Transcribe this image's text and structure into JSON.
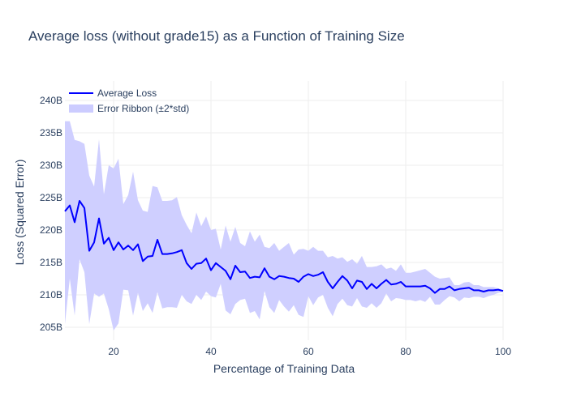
{
  "chart_data": {
    "type": "line",
    "title": "Average loss (without grade15) as a Function of Training Size",
    "xlabel": "Percentage of Training Data",
    "ylabel": "Loss (Squared Error)",
    "xlim": [
      10,
      100
    ],
    "ylim": [
      203,
      243
    ],
    "x_ticks": [
      20,
      40,
      60,
      80,
      100
    ],
    "y_ticks": [
      205,
      210,
      215,
      220,
      225,
      230,
      235,
      240
    ],
    "y_tick_labels": [
      "205B",
      "210B",
      "215B",
      "220B",
      "225B",
      "230B",
      "235B",
      "240B"
    ],
    "legend_position": "top-left",
    "grid": true,
    "series": [
      {
        "name": "Average Loss",
        "color": "#0000ff",
        "x": [
          10,
          11,
          12,
          13,
          14,
          15,
          16,
          17,
          18,
          19,
          20,
          21,
          22,
          23,
          24,
          25,
          26,
          27,
          28,
          29,
          30,
          31,
          32,
          33,
          34,
          35,
          36,
          37,
          38,
          39,
          40,
          41,
          42,
          43,
          44,
          45,
          46,
          47,
          48,
          49,
          50,
          51,
          52,
          53,
          54,
          55,
          56,
          57,
          58,
          59,
          60,
          61,
          62,
          63,
          64,
          65,
          66,
          67,
          68,
          69,
          70,
          71,
          72,
          73,
          74,
          75,
          76,
          77,
          78,
          79,
          80,
          81,
          82,
          83,
          84,
          85,
          86,
          87,
          88,
          89,
          90,
          91,
          92,
          93,
          94,
          95,
          96,
          97,
          98,
          99,
          100
        ],
        "values": [
          222.9,
          223.8,
          221.2,
          224.5,
          223.4,
          216.8,
          218.1,
          221.8,
          217.9,
          218.8,
          216.9,
          218.1,
          217.0,
          217.6,
          216.9,
          217.8,
          215.2,
          215.9,
          216.0,
          218.5,
          216.3,
          216.3,
          216.4,
          216.6,
          216.9,
          214.9,
          214.0,
          214.8,
          214.9,
          215.6,
          213.8,
          214.9,
          214.3,
          213.7,
          212.4,
          214.5,
          213.5,
          213.6,
          212.6,
          212.8,
          212.7,
          214.1,
          212.8,
          212.4,
          212.9,
          212.8,
          212.6,
          212.5,
          212.0,
          212.8,
          213.2,
          212.9,
          213.1,
          213.5,
          212.0,
          211.0,
          212.0,
          212.9,
          212.2,
          211.0,
          212.2,
          212.0,
          210.9,
          211.7,
          211.0,
          211.7,
          212.3,
          211.6,
          211.7,
          212.0,
          211.3,
          211.3,
          211.3,
          211.3,
          211.4,
          211.0,
          210.3,
          210.9,
          210.9,
          211.3,
          210.7,
          210.9,
          211.0,
          211.1,
          210.7,
          210.7,
          210.5,
          210.7,
          210.7,
          210.8,
          210.6
        ]
      },
      {
        "name": "Error Ribbon (±2*std)",
        "color": "#ccccff",
        "x": [
          10,
          11,
          12,
          13,
          14,
          15,
          16,
          17,
          18,
          19,
          20,
          21,
          22,
          23,
          24,
          25,
          26,
          27,
          28,
          29,
          30,
          31,
          32,
          33,
          34,
          35,
          36,
          37,
          38,
          39,
          40,
          41,
          42,
          43,
          44,
          45,
          46,
          47,
          48,
          49,
          50,
          51,
          52,
          53,
          54,
          55,
          56,
          57,
          58,
          59,
          60,
          61,
          62,
          63,
          64,
          65,
          66,
          67,
          68,
          69,
          70,
          71,
          72,
          73,
          74,
          75,
          76,
          77,
          78,
          79,
          80,
          81,
          82,
          83,
          84,
          85,
          86,
          87,
          88,
          89,
          90,
          91,
          92,
          93,
          94,
          95,
          96,
          97,
          98,
          99,
          100
        ],
        "upper": [
          236.8,
          236.8,
          233.9,
          233.7,
          233.3,
          228.4,
          226.7,
          234.0,
          225.5,
          230.0,
          229.5,
          231.0,
          224.0,
          225.4,
          229.0,
          224.6,
          223.0,
          222.8,
          226.8,
          226.6,
          224.5,
          224.5,
          224.6,
          225.1,
          222.3,
          220.8,
          219.5,
          222.7,
          220.6,
          222.1,
          220.0,
          220.2,
          217.0,
          220.7,
          218.2,
          220.5,
          218.0,
          217.5,
          219.8,
          218.2,
          219.3,
          217.4,
          217.2,
          218.0,
          216.8,
          217.4,
          218.0,
          216.2,
          217.0,
          217.1,
          216.8,
          217.4,
          216.8,
          216.8,
          215.8,
          216.0,
          215.6,
          215.8,
          215.1,
          215.5,
          214.8,
          216.0,
          214.3,
          214.3,
          214.4,
          214.7,
          214.0,
          214.2,
          213.7,
          214.7,
          213.4,
          213.4,
          213.6,
          213.8,
          214.0,
          213.4,
          212.8,
          212.5,
          212.6,
          212.7,
          211.5,
          211.5,
          211.9,
          212.0,
          211.5,
          211.5,
          211.2,
          211.2,
          211.2,
          211.0,
          210.7
        ],
        "lower": [
          205.5,
          212.5,
          206.8,
          215.5,
          213.5,
          205.5,
          210.2,
          209.7,
          210.2,
          207.8,
          204.5,
          205.6,
          210.8,
          210.7,
          206.8,
          210.3,
          207.5,
          208.7,
          207.2,
          210.4,
          207.9,
          208.1,
          208.1,
          208.0,
          210.0,
          209.0,
          208.6,
          210.0,
          209.2,
          210.5,
          209.8,
          209.6,
          211.7,
          207.6,
          207.0,
          208.6,
          209.2,
          209.4,
          207.2,
          207.5,
          206.2,
          210.6,
          208.1,
          207.2,
          209.2,
          208.2,
          207.4,
          208.4,
          206.9,
          206.6,
          209.8,
          208.4,
          209.6,
          210.0,
          208.0,
          206.7,
          208.6,
          209.4,
          208.4,
          208.2,
          209.5,
          208.2,
          208.0,
          208.7,
          208.0,
          208.7,
          210.2,
          209.0,
          209.5,
          209.4,
          209.2,
          209.2,
          209.0,
          209.2,
          208.9,
          209.7,
          208.5,
          208.5,
          209.2,
          209.8,
          209.6,
          209.0,
          209.6,
          209.5,
          209.7,
          209.7,
          209.5,
          209.8,
          210.0,
          210.3,
          210.5
        ]
      }
    ]
  }
}
